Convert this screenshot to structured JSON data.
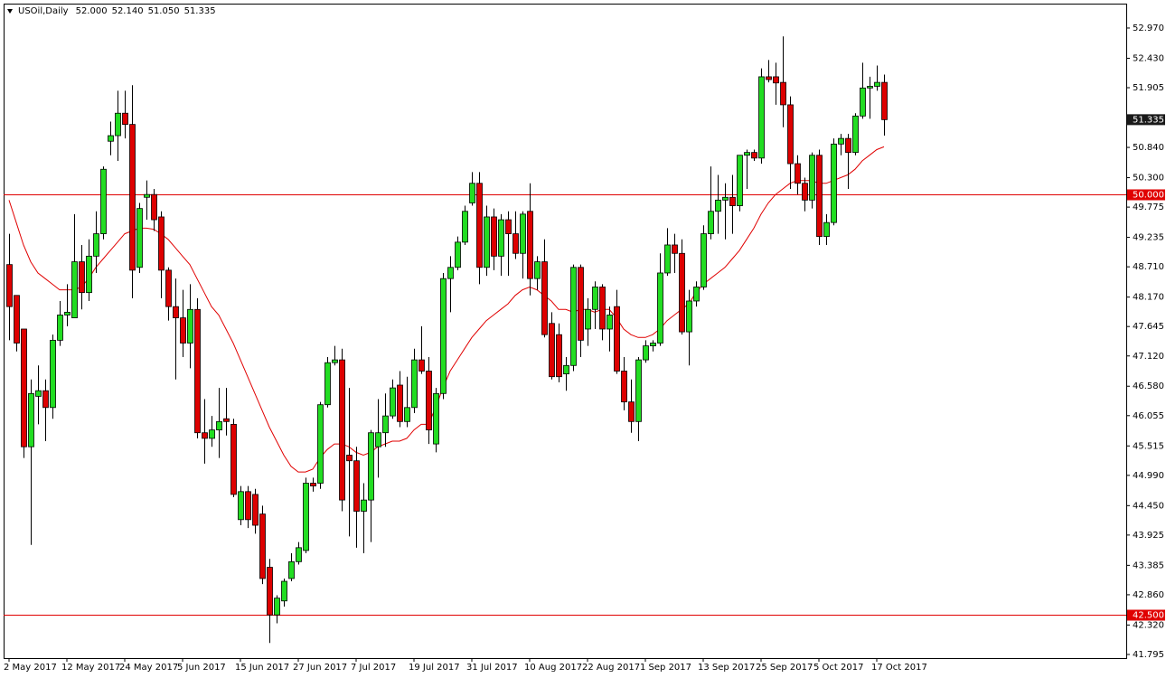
{
  "chart_data": {
    "type": "candlestick",
    "title": "USOil,Daily",
    "last_bar": [
      {
        "value": 52,
        "label": "52.000"
      },
      {
        "value": 52.14,
        "label": "52.140"
      },
      {
        "value": 51.05,
        "label": "51.050"
      },
      51.335
    ],
    "categories": [
      "2 May 2017",
      null,
      null,
      null,
      null,
      null,
      null,
      null,
      "12 May 2017",
      null,
      null,
      null,
      null,
      null,
      null,
      null,
      "24 May 2017",
      null,
      null,
      null,
      null,
      null,
      null,
      null,
      "5 Jun 2017",
      null,
      null,
      null,
      null,
      null,
      null,
      null,
      "15 Jun 2017",
      null,
      null,
      null,
      null,
      null,
      null,
      null,
      "27 Jun 2017",
      null,
      null,
      null,
      null,
      null,
      null,
      null,
      "7 Jul 2017",
      null,
      null,
      null,
      null,
      null,
      null,
      null,
      "19 Jul 2017",
      null,
      null,
      null,
      null,
      null,
      null,
      null,
      "31 Jul 2017",
      null,
      null,
      null,
      null,
      null,
      null,
      null,
      "10 Aug 2017",
      null,
      null,
      null,
      null,
      null,
      null,
      null,
      "22 Aug 2017",
      null,
      null,
      null,
      null,
      null,
      null,
      null,
      "1 Sep 2017",
      null,
      null,
      null,
      null,
      null,
      null,
      null,
      "13 Sep 2017",
      null,
      null,
      null,
      null,
      null,
      null,
      null,
      "25 Sep 2017",
      null,
      null,
      null,
      null,
      null,
      null,
      null,
      "5 Oct 2017",
      null,
      null,
      null,
      null,
      null,
      null,
      null,
      "17 Oct 2017",
      null
    ],
    "open": [
      48.75,
      48.2,
      47.6,
      45.5,
      46.4,
      46.5,
      46.2,
      47.4,
      47.85,
      47.8,
      48.8,
      48.25,
      48.9,
      49.3,
      50.95,
      51.05,
      51.45,
      51.25,
      48.7,
      49.95,
      50.0,
      49.6,
      48.65,
      48.0,
      47.8,
      47.35,
      47.95,
      45.75,
      45.65,
      45.8,
      46.0,
      45.9,
      44.2,
      44.7,
      44.65,
      44.3,
      43.35,
      42.5,
      42.75,
      43.15,
      43.45,
      43.65,
      44.85,
      44.85,
      46.25,
      47.0,
      47.05,
      45.35,
      45.25,
      44.35,
      44.55,
      45.5,
      45.75,
      46.05,
      46.6,
      45.95,
      46.2,
      47.05,
      46.85,
      45.55,
      46.45,
      48.5,
      48.7,
      49.15,
      49.85,
      50.2,
      48.7,
      49.6,
      48.9,
      49.55,
      49.3,
      48.95,
      49.7,
      48.5,
      48.8,
      47.7,
      47.5,
      46.8,
      46.95,
      48.7,
      47.6,
      47.95,
      48.35,
      47.6,
      48.0,
      46.85,
      46.3,
      45.95,
      47.05,
      47.3,
      47.35,
      48.6,
      49.1,
      48.95,
      47.55,
      48.1,
      48.35,
      49.3,
      49.7,
      49.9,
      49.95,
      49.8,
      50.7,
      50.75,
      50.65,
      52.1,
      52.1,
      52.0,
      51.6,
      50.55,
      50.2,
      49.9,
      50.7,
      49.25,
      49.5,
      50.9,
      51.0,
      50.75,
      51.4,
      51.9,
      51.93,
      52.0
    ],
    "high": [
      49.3,
      48.2,
      47.6,
      46.7,
      46.95,
      46.7,
      47.5,
      48.1,
      48.4,
      49.65,
      49.1,
      49.2,
      49.7,
      50.5,
      51.3,
      51.85,
      51.85,
      51.95,
      49.85,
      50.25,
      50.1,
      49.7,
      48.7,
      48.5,
      48.3,
      48.4,
      48.15,
      46.35,
      46.05,
      46.55,
      46.55,
      46.0,
      44.8,
      44.8,
      44.75,
      44.45,
      43.5,
      42.85,
      43.15,
      43.6,
      43.8,
      44.95,
      44.95,
      46.3,
      47.1,
      47.3,
      47.25,
      46.55,
      45.5,
      44.85,
      45.8,
      46.35,
      46.45,
      46.7,
      46.85,
      46.75,
      47.25,
      47.65,
      47.1,
      46.55,
      48.6,
      48.9,
      49.25,
      49.8,
      50.4,
      50.4,
      49.8,
      49.75,
      49.65,
      49.7,
      49.7,
      49.7,
      50.2,
      48.9,
      49.2,
      47.9,
      47.7,
      47.1,
      48.75,
      48.75,
      48.15,
      48.45,
      48.4,
      48.0,
      48.3,
      47.1,
      46.7,
      47.1,
      47.4,
      47.4,
      48.95,
      49.4,
      49.3,
      49.2,
      48.3,
      48.45,
      49.45,
      50.5,
      50.35,
      50.2,
      50.35,
      50.7,
      50.8,
      50.8,
      52.25,
      52.4,
      52.35,
      52.82,
      51.75,
      50.7,
      50.3,
      50.75,
      50.8,
      49.65,
      51.0,
      51.08,
      51.08,
      51.45,
      52.35,
      52.1,
      52.3,
      52.14
    ],
    "low": [
      47.4,
      47.2,
      45.3,
      43.75,
      45.9,
      45.6,
      46.0,
      47.3,
      47.65,
      47.8,
      47.95,
      48.1,
      48.6,
      49.2,
      50.7,
      50.6,
      51.0,
      48.15,
      48.6,
      49.55,
      49.35,
      48.15,
      47.75,
      46.7,
      47.1,
      46.9,
      45.65,
      45.2,
      45.5,
      45.3,
      45.7,
      44.6,
      44.1,
      44.05,
      43.95,
      43.05,
      42.0,
      42.35,
      42.65,
      43.1,
      43.4,
      43.6,
      44.7,
      44.75,
      46.2,
      46.95,
      44.35,
      43.9,
      43.7,
      43.6,
      43.8,
      44.95,
      45.5,
      46.0,
      45.85,
      45.85,
      46.1,
      46.8,
      45.55,
      45.4,
      46.35,
      47.9,
      48.65,
      49.1,
      49.8,
      48.4,
      48.55,
      48.65,
      48.55,
      48.55,
      48.85,
      48.5,
      48.2,
      48.3,
      47.45,
      46.7,
      46.65,
      46.5,
      46.85,
      47.1,
      47.3,
      47.6,
      47.4,
      47.2,
      46.8,
      46.15,
      45.75,
      45.6,
      47.0,
      47.2,
      47.3,
      48.55,
      48.6,
      47.5,
      46.95,
      48.0,
      48.3,
      49.2,
      49.3,
      49.2,
      49.3,
      49.7,
      50.1,
      50.6,
      50.55,
      52.0,
      51.6,
      51.2,
      50.1,
      50.0,
      49.7,
      49.75,
      49.1,
      49.1,
      49.45,
      50.7,
      50.1,
      50.7,
      51.35,
      51.35,
      51.85,
      51.05
    ],
    "close": [
      48.0,
      47.35,
      45.5,
      46.45,
      46.5,
      46.2,
      47.4,
      47.85,
      47.9,
      48.8,
      48.25,
      48.9,
      49.3,
      50.45,
      51.05,
      51.45,
      51.25,
      48.65,
      49.75,
      50.0,
      49.55,
      48.65,
      48.0,
      47.8,
      47.35,
      47.95,
      45.75,
      45.65,
      45.8,
      45.95,
      45.95,
      44.65,
      44.7,
      44.2,
      44.1,
      43.15,
      42.5,
      42.8,
      43.1,
      43.45,
      43.7,
      44.85,
      44.8,
      46.25,
      47.0,
      47.05,
      44.55,
      45.25,
      44.35,
      44.55,
      45.75,
      45.75,
      46.05,
      46.55,
      45.95,
      46.2,
      47.05,
      46.85,
      45.8,
      46.45,
      48.5,
      48.7,
      49.15,
      49.7,
      50.2,
      48.7,
      49.6,
      48.9,
      49.55,
      49.3,
      48.95,
      49.65,
      48.5,
      48.8,
      47.5,
      46.75,
      46.75,
      46.95,
      48.7,
      47.4,
      47.95,
      48.35,
      47.6,
      47.85,
      46.85,
      46.3,
      45.95,
      47.05,
      47.3,
      47.35,
      48.6,
      49.1,
      48.95,
      47.55,
      48.1,
      48.35,
      49.3,
      49.7,
      49.9,
      49.95,
      49.8,
      50.7,
      50.75,
      50.65,
      52.1,
      52.05,
      51.99,
      51.6,
      50.55,
      50.2,
      49.9,
      50.7,
      49.25,
      49.5,
      50.9,
      51.0,
      50.75,
      51.4,
      51.9,
      51.93,
      52.0,
      51.335
    ],
    "up_color": "#22dd22",
    "down_color": "#dd0000",
    "moving_average": {
      "color": "#e00000",
      "values": [
        49.9,
        49.5,
        49.1,
        48.8,
        48.6,
        48.5,
        48.4,
        48.3,
        48.3,
        48.3,
        48.35,
        48.5,
        48.7,
        48.85,
        49.0,
        49.15,
        49.3,
        49.35,
        49.4,
        49.4,
        49.38,
        49.3,
        49.2,
        49.05,
        48.9,
        48.75,
        48.5,
        48.25,
        48.0,
        47.85,
        47.6,
        47.35,
        47.05,
        46.75,
        46.45,
        46.15,
        45.85,
        45.6,
        45.35,
        45.15,
        45.05,
        45.05,
        45.1,
        45.3,
        45.45,
        45.55,
        45.55,
        45.5,
        45.4,
        45.35,
        45.4,
        45.5,
        45.55,
        45.6,
        45.6,
        45.65,
        45.8,
        45.9,
        45.9,
        46.2,
        46.55,
        46.85,
        47.05,
        47.25,
        47.45,
        47.6,
        47.75,
        47.85,
        47.95,
        48.05,
        48.2,
        48.3,
        48.35,
        48.3,
        48.2,
        48.1,
        47.95,
        47.95,
        47.9,
        47.95,
        47.95,
        47.9,
        47.95,
        47.95,
        47.8,
        47.6,
        47.5,
        47.45,
        47.45,
        47.5,
        47.6,
        47.75,
        47.85,
        47.95,
        48.05,
        48.25,
        48.4,
        48.5,
        48.6,
        48.7,
        48.85,
        49.0,
        49.2,
        49.4,
        49.65,
        49.85,
        50.0,
        50.1,
        50.2,
        50.25,
        50.25,
        50.25,
        50.2,
        50.2,
        50.25,
        50.3,
        50.35,
        50.45,
        50.6,
        50.7,
        50.8,
        50.85
      ]
    },
    "levels": [
      {
        "value": 50,
        "label": "50.000"
      },
      {
        "value": 42.5,
        "label": "42.500"
      }
    ],
    "level_color": "#e00000",
    "current_price": 51.335,
    "ylim": [
      41.73,
      53.405
    ],
    "yticks": [
      {
        "value": 52.97,
        "label": "52.970"
      },
      {
        "value": 52.43,
        "label": "52.430"
      },
      51.905,
      {
        "value": 50.84,
        "label": "50.840"
      },
      {
        "value": 50.3,
        "label": "50.300"
      },
      49.775,
      49.235,
      {
        "value": 48.71,
        "label": "48.710"
      },
      {
        "value": 48.17,
        "label": "48.170"
      },
      47.645,
      {
        "value": 47.12,
        "label": "47.120"
      },
      {
        "value": 46.58,
        "label": "46.580"
      },
      46.055,
      45.515,
      {
        "value": 44.99,
        "label": "44.990"
      },
      {
        "value": 44.45,
        "label": "44.450"
      },
      43.925,
      43.385,
      {
        "value": 42.86,
        "label": "42.860"
      },
      {
        "value": 42.32,
        "label": "42.320"
      },
      41.795
    ]
  }
}
